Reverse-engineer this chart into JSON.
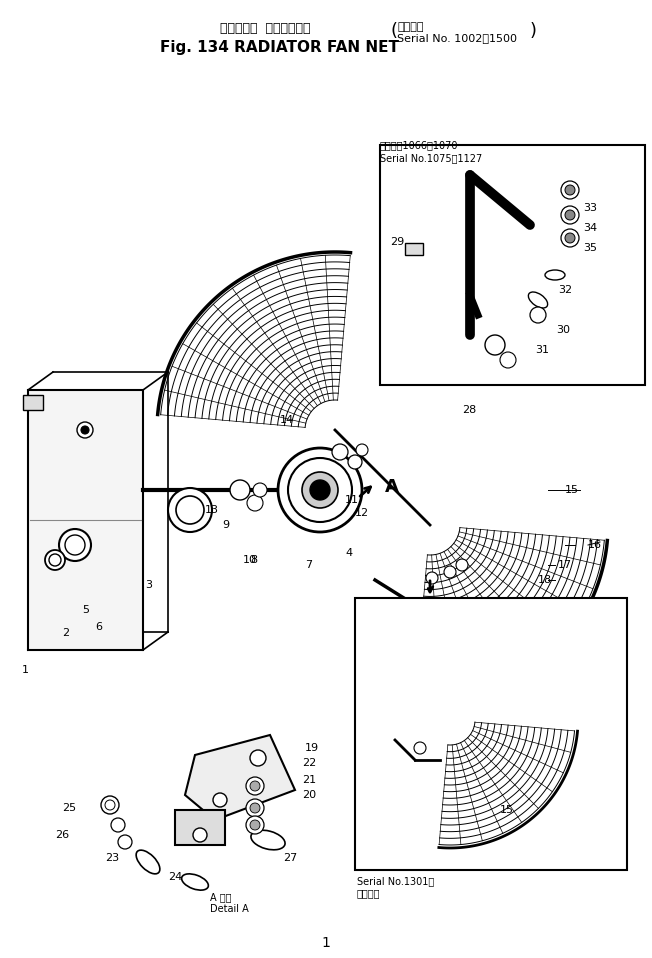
{
  "title_jp": "ラジエータ  ファンネット",
  "title_serial_label": "適用号機",
  "title_serial": "Serial No. 1002－1500",
  "title_en": "Fig. 134 RADIATOR FAN NET",
  "bg_color": "#ffffff",
  "box1_label_jp": "適用号機1066～1070",
  "box1_label_en": "Serial No.1075－1127",
  "box2_label_jp": "適用号機",
  "box2_label_en": "Serial No.1301～",
  "detail_label_jp": "A 詳細",
  "detail_label_en": "Detail A",
  "page_num": "1"
}
